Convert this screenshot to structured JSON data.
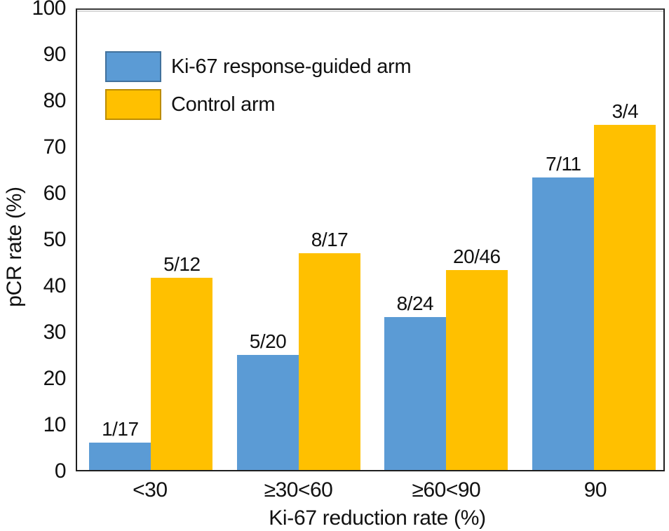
{
  "figure": {
    "background": "#ffffff",
    "text_color": "#111111",
    "frame_color": "#1f1f1f"
  },
  "chart_data": {
    "type": "bar",
    "title": "",
    "xlabel": "Ki-67 reduction rate (%)",
    "ylabel": "pCR rate (%)",
    "categories": [
      "<30",
      "≥30<60",
      "≥60<90",
      "90"
    ],
    "series": [
      {
        "name": "Ki-67 response-guided arm",
        "color": "#5B9BD5",
        "border_color": "#41719C",
        "values": [
          5.9,
          25.0,
          33.3,
          63.6
        ],
        "labels": [
          "1/17",
          "5/20",
          "8/24",
          "7/11"
        ]
      },
      {
        "name": "Control arm",
        "color": "#FFC000",
        "border_color": "#BC8C00",
        "values": [
          41.7,
          47.1,
          43.5,
          75.0
        ],
        "labels": [
          "5/12",
          "8/17",
          "20/46",
          "3/4"
        ]
      }
    ],
    "ylim": [
      0,
      100
    ],
    "yticks": [
      0,
      10,
      20,
      30,
      40,
      50,
      60,
      70,
      80,
      90,
      100
    ],
    "grid": false,
    "legend_position": "top-left-inside",
    "group_centers_pct": [
      12.6,
      37.8,
      62.9,
      88.2
    ]
  }
}
